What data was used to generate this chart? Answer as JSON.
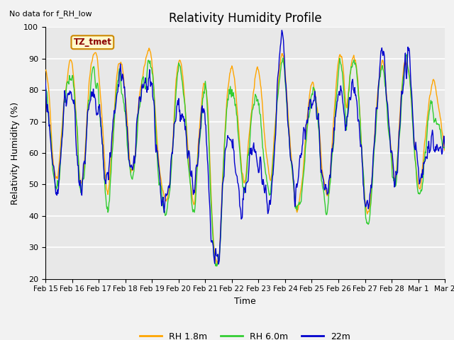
{
  "title": "Relativity Humidity Profile",
  "subtitle": "No data for f_RH_low",
  "xlabel": "Time",
  "ylabel": "Relativity Humidity (%)",
  "ylim": [
    20,
    100
  ],
  "yticks": [
    20,
    30,
    40,
    50,
    60,
    70,
    80,
    90,
    100
  ],
  "legend_labels": [
    "RH 1.8m",
    "RH 6.0m",
    "22m"
  ],
  "colors": {
    "RH_1.8m": "#FFA500",
    "RH_6.0m": "#32CD32",
    "22m": "#0000CD"
  },
  "annotation": "TZ_tmet",
  "fig_bg_color": "#F2F2F2",
  "plot_bg_color": "#E8E8E8",
  "grid_color": "#FFFFFF",
  "tick_dates": [
    "Feb 15",
    "Feb 16",
    "Feb 17",
    "Feb 18",
    "Feb 19",
    "Feb 20",
    "Feb 21",
    "Feb 22",
    "Feb 23",
    "Feb 24",
    "Feb 25",
    "Feb 26",
    "Feb 27",
    "Feb 28",
    "Mar 1",
    "Mar 2"
  ],
  "figsize": [
    6.4,
    4.8
  ],
  "dpi": 100
}
